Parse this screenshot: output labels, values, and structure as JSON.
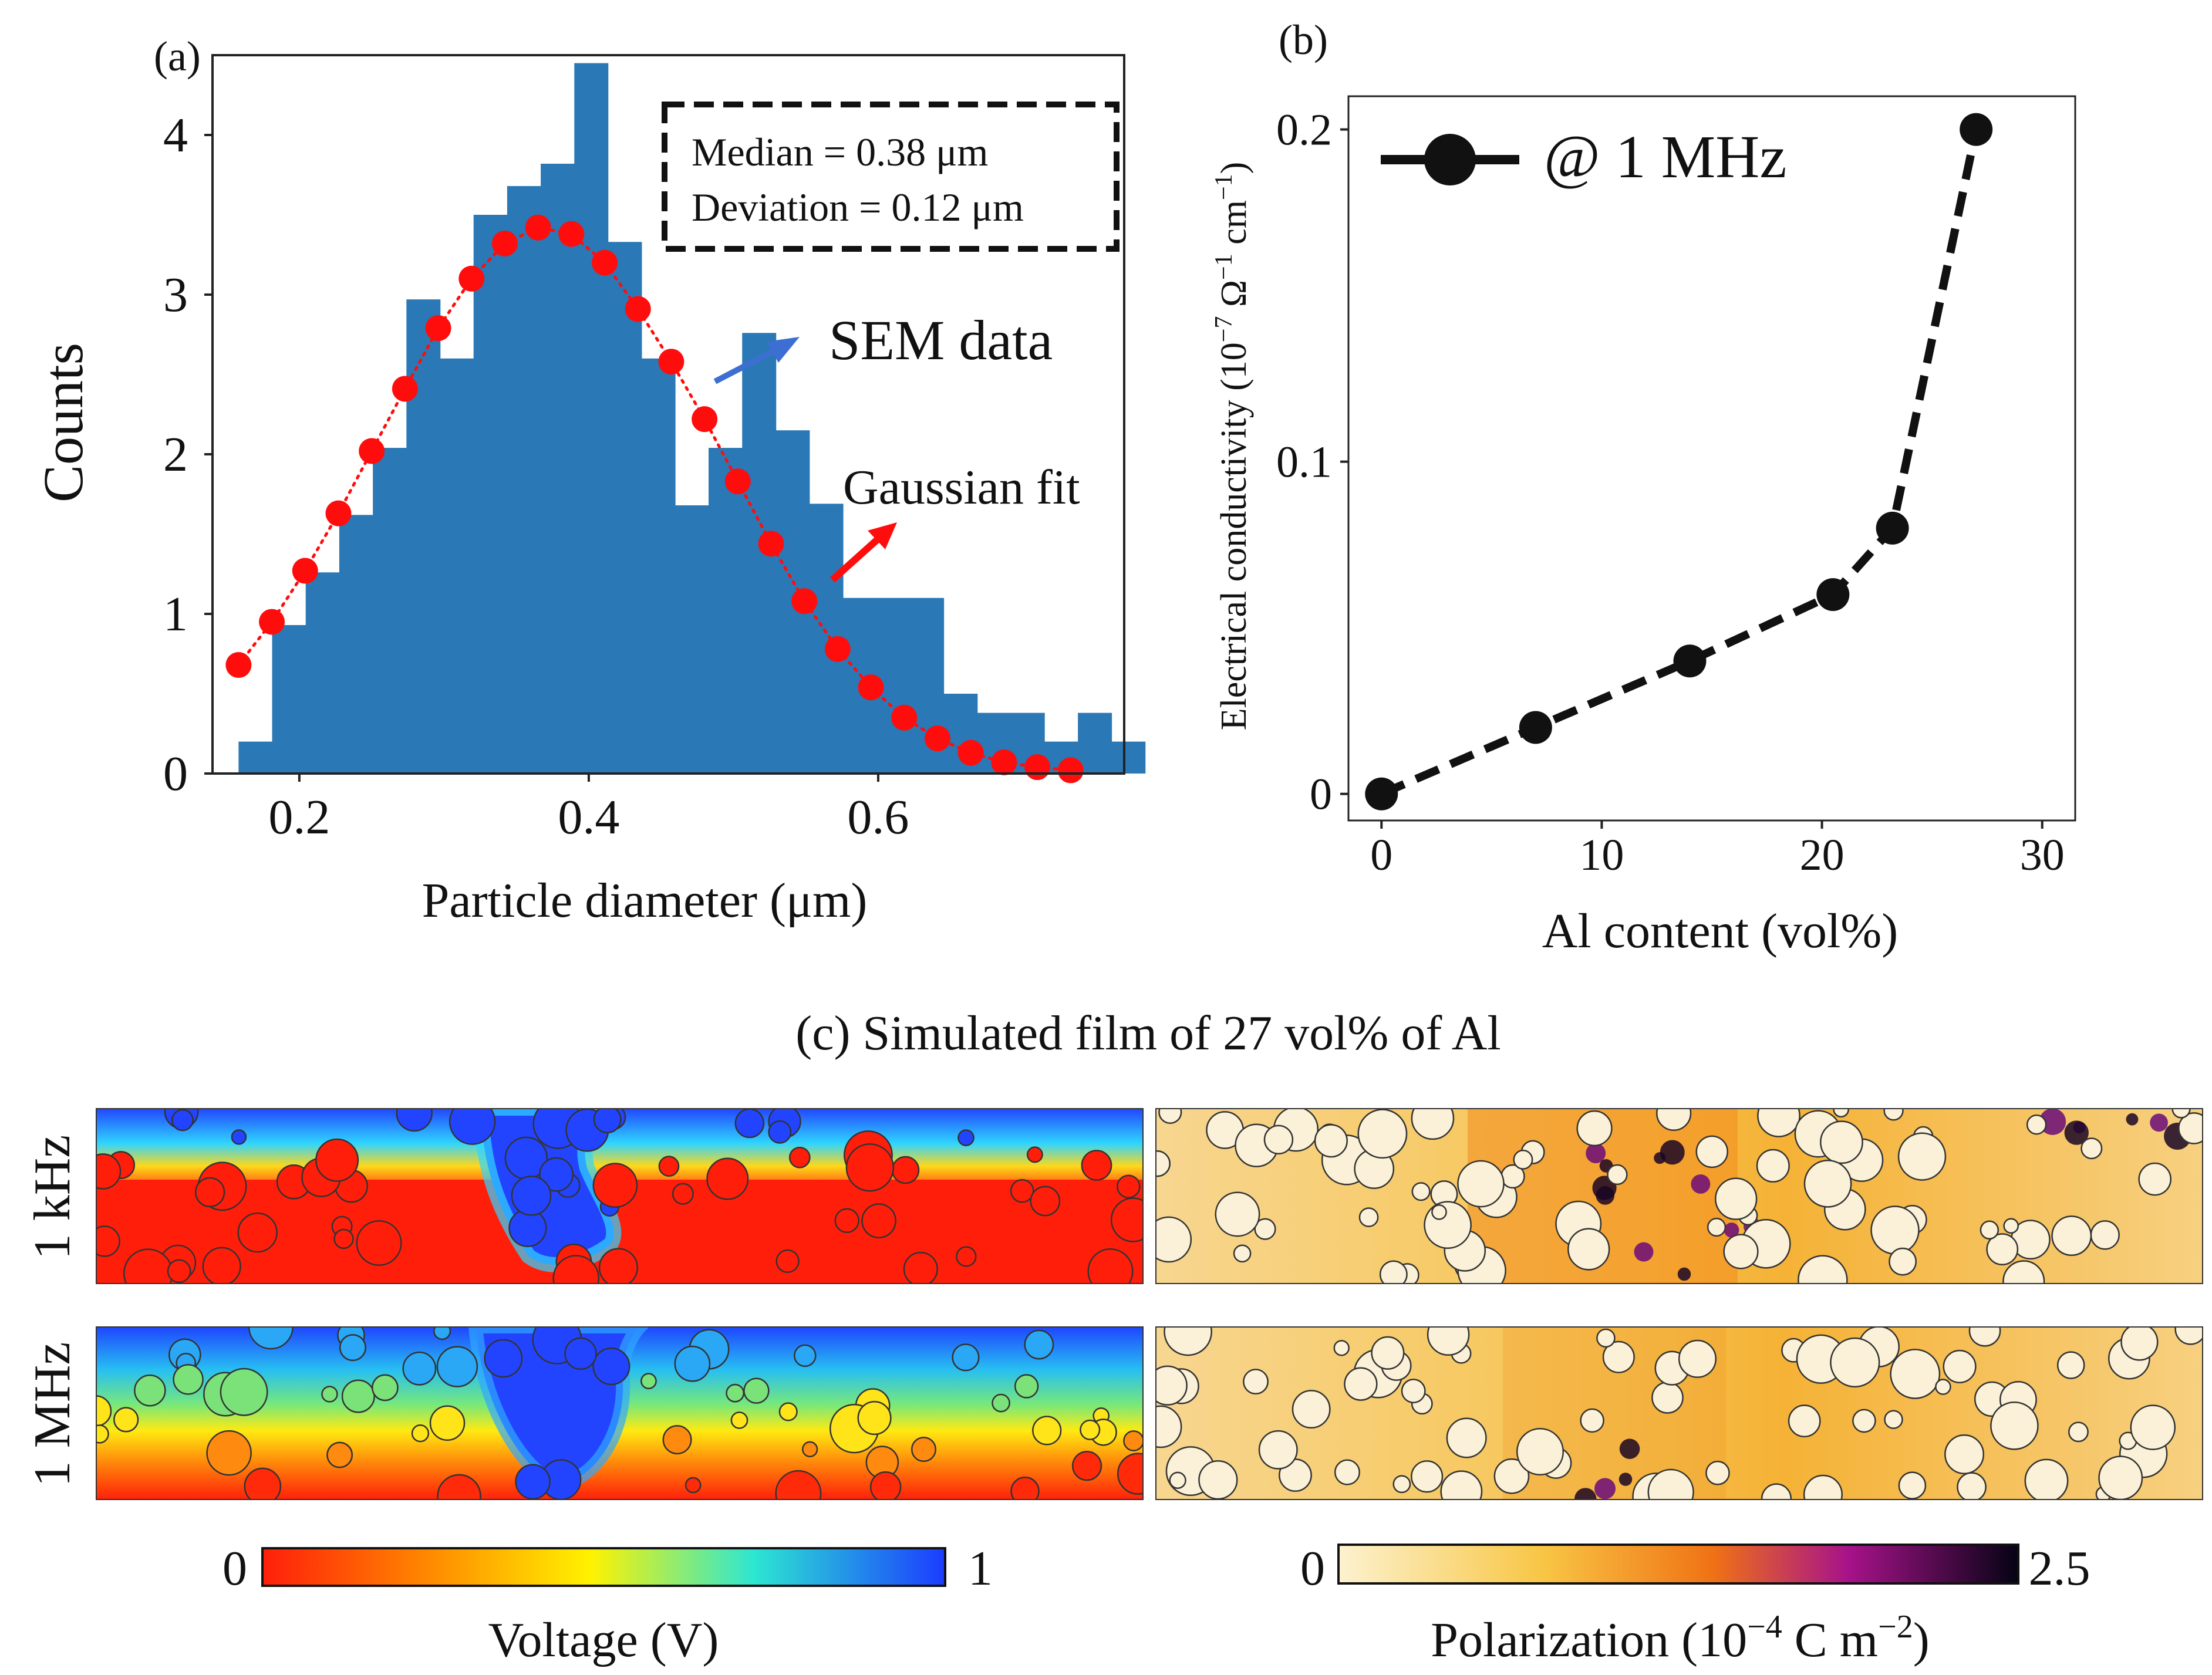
{
  "colors": {
    "hist_bar": "#2a78b5",
    "fit_marker": "#ff0d0d",
    "blue_arrow": "#3c6fd1",
    "red_arrow": "#ff0d0d",
    "line_b": "#111111"
  },
  "chart_data": [
    {
      "type": "bar",
      "panel_label": "(a)",
      "xlabel": "Particle diameter (μm)",
      "ylabel": "Counts",
      "xlim": [
        0.14,
        0.77
      ],
      "ylim": [
        0,
        4.5
      ],
      "xticks": [
        "0.2",
        "0.4",
        "0.6"
      ],
      "xtick_values": [
        0.2,
        0.4,
        0.6
      ],
      "yticks": [
        "0",
        "1",
        "2",
        "3",
        "4"
      ],
      "ytick_values": [
        0,
        1,
        2,
        3,
        4
      ],
      "bin_width": 0.0232,
      "bin_start": 0.158,
      "counts": [
        0.2,
        0.93,
        1.26,
        1.62,
        2.04,
        2.97,
        2.6,
        3.5,
        3.68,
        3.82,
        4.45,
        3.33,
        2.6,
        1.68,
        2.04,
        2.76,
        2.15,
        1.69,
        1.1,
        1.1,
        1.1,
        0.5,
        0.38,
        0.38,
        0.2,
        0.38,
        0.2
      ],
      "fit": {
        "name": "Gaussian fit",
        "x": [
          0.158,
          0.181,
          0.204,
          0.227,
          0.25,
          0.273,
          0.296,
          0.319,
          0.342,
          0.365,
          0.388,
          0.411,
          0.434,
          0.457,
          0.48,
          0.503,
          0.526,
          0.549,
          0.572,
          0.595,
          0.618,
          0.641,
          0.664,
          0.687,
          0.71,
          0.733
        ],
        "y": [
          0.68,
          0.95,
          1.27,
          1.63,
          2.02,
          2.41,
          2.79,
          3.1,
          3.32,
          3.42,
          3.38,
          3.2,
          2.91,
          2.58,
          2.22,
          1.83,
          1.44,
          1.08,
          0.78,
          0.54,
          0.35,
          0.22,
          0.13,
          0.07,
          0.04,
          0.02
        ]
      },
      "stats_box": [
        "Median = 0.38 μm",
        "Deviation = 0.12 μm"
      ],
      "annotations": [
        "SEM data",
        "Gaussian fit"
      ]
    },
    {
      "type": "line",
      "panel_label": "(b)",
      "xlabel": "Al content (vol%)",
      "ylabel_main": "Electrical conductivity (10",
      "ylabel_exp1": "−7",
      "ylabel_mid": " Ω",
      "ylabel_exp2": "−1",
      "ylabel_mid2": " cm",
      "ylabel_exp3": "−1",
      "ylabel_end": ")",
      "xlim": [
        -1.5,
        31.5
      ],
      "ylim": [
        -0.008,
        0.21
      ],
      "xticks": [
        "0",
        "10",
        "20",
        "30"
      ],
      "xtick_values": [
        0,
        10,
        20,
        30
      ],
      "yticks": [
        "0",
        "0.1",
        "0.2"
      ],
      "ytick_values": [
        0,
        0.1,
        0.2
      ],
      "series": [
        {
          "name": "@ 1 MHz",
          "x": [
            0,
            7,
            14,
            20.5,
            23.2,
            27
          ],
          "y": [
            0.0,
            0.02,
            0.04,
            0.06,
            0.08,
            0.2
          ]
        }
      ]
    },
    {
      "type": "heatmap",
      "panel_label": "(c) Simulated film of 27 vol% of Al",
      "row_labels": [
        "1 kHz",
        "1 MHz"
      ],
      "colorbars": [
        {
          "min_label": "0",
          "max_label": "1",
          "label": "Voltage (V)"
        },
        {
          "min_label": "0",
          "max_label": "2.5",
          "label_pre": "Polarization (10",
          "label_exp1": "−4",
          "label_mid": " C m",
          "label_exp2": "−2",
          "label_end": ")"
        }
      ]
    }
  ]
}
